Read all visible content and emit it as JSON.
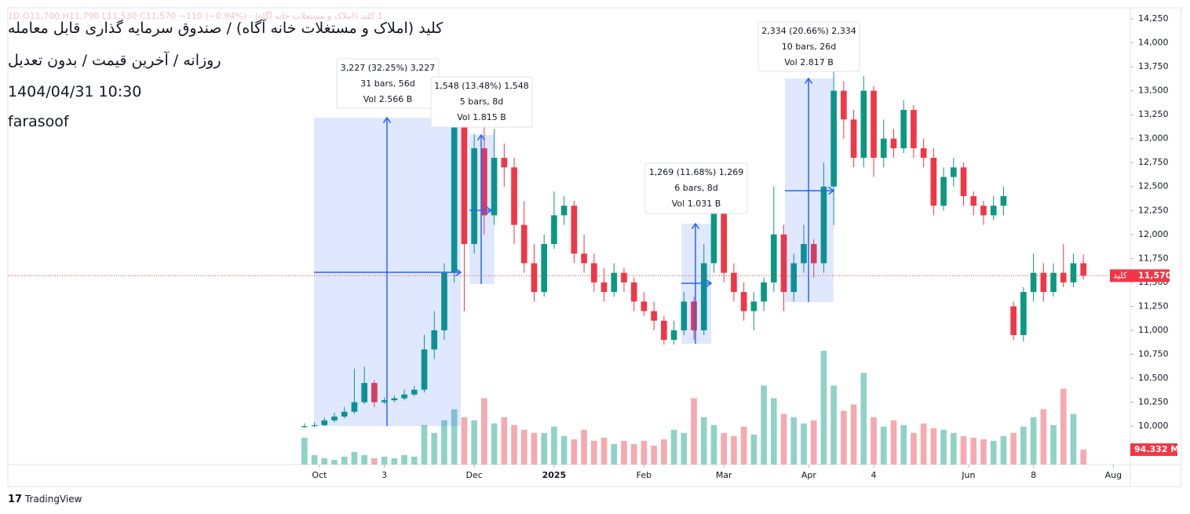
{
  "chart_data": {
    "type": "candlestick",
    "legend_line": "1 کلید (املاک و مستغلات خانه آگاه) · 1D O11,700 H11,790 L11,530 C11,570 −110 (−0.94%)",
    "title": "کلید (املاک و مستغلات خانه آگاه) / صندوق سرمایه گذاری قابل معامله",
    "subtitle": "روزانه / آخرین قیمت / بدون تعدیل",
    "datetime": "1404/04/31 10:30",
    "author": "farasoof",
    "footer": "TradingView",
    "up_color": "#089981",
    "down_color": "#f23645",
    "up_volume_color": "#8fd2c6",
    "down_volume_color": "#f7a9b0",
    "open": [
      9990,
      10000,
      10010,
      10060,
      10100,
      10150,
      10250,
      10450,
      10250,
      10270,
      10290,
      10330,
      10380,
      10800,
      11000,
      11600,
      13200,
      11900,
      12900,
      12200,
      12800,
      12700,
      12100,
      11700,
      11400,
      11900,
      12200,
      12300,
      11800,
      11700,
      11500,
      11400,
      11600,
      11500,
      11300,
      11200,
      11100,
      10900,
      11000,
      11300,
      11000,
      11700,
      12300,
      11600,
      11400,
      11200,
      11300,
      11500,
      12000,
      11400,
      11700,
      11900,
      11700,
      12500,
      13500,
      13200,
      12800,
      13500,
      12800,
      13000,
      12900,
      13300,
      12900,
      12800,
      12300,
      12600,
      12700,
      12400,
      12300,
      12200,
      12300,
      11250,
      10950,
      11400,
      11600,
      11400,
      11600,
      11500,
      11700
    ],
    "high": [
      10030,
      10040,
      10090,
      10140,
      10200,
      10600,
      10620,
      10480,
      10300,
      10320,
      10380,
      10420,
      10950,
      11200,
      11700,
      13300,
      13300,
      13050,
      13200,
      13100,
      12950,
      12800,
      12350,
      11900,
      12000,
      12450,
      12400,
      12350,
      12000,
      11800,
      11650,
      11700,
      11650,
      11550,
      11400,
      11300,
      11150,
      11100,
      11400,
      11350,
      11900,
      12400,
      12350,
      11700,
      11500,
      11400,
      11550,
      12500,
      12100,
      11800,
      12100,
      11950,
      12750,
      13900,
      13600,
      13300,
      13650,
      13550,
      13200,
      13100,
      13400,
      13350,
      13000,
      12900,
      12700,
      12800,
      12750,
      12450,
      12350,
      12400,
      12500,
      11300,
      11450,
      11800,
      11700,
      11700,
      11900,
      11800,
      11790
    ],
    "low": [
      9980,
      9990,
      10000,
      10040,
      10080,
      10130,
      10230,
      10200,
      10230,
      10250,
      10270,
      10310,
      10350,
      10700,
      10900,
      11500,
      11200,
      11800,
      12000,
      12100,
      12500,
      11900,
      11600,
      11300,
      11350,
      11850,
      12100,
      11700,
      11600,
      11400,
      11300,
      11350,
      11400,
      11200,
      11150,
      11000,
      10850,
      10850,
      10950,
      10900,
      10950,
      11600,
      11500,
      11300,
      11100,
      11000,
      11200,
      11400,
      11200,
      11300,
      11600,
      11550,
      11600,
      12100,
      13000,
      12700,
      12700,
      12600,
      12700,
      12800,
      12850,
      12800,
      12700,
      12200,
      12250,
      12500,
      12300,
      12200,
      12100,
      12150,
      12200,
      10900,
      10880,
      11300,
      11300,
      11350,
      11450,
      11450,
      11530
    ],
    "close": [
      10000,
      10010,
      10060,
      10100,
      10150,
      10250,
      10450,
      10250,
      10270,
      10290,
      10330,
      10380,
      10800,
      11000,
      11600,
      13200,
      11900,
      12900,
      12200,
      12800,
      12700,
      12100,
      11700,
      11400,
      11900,
      12200,
      12300,
      11800,
      11700,
      11500,
      11400,
      11600,
      11500,
      11300,
      11200,
      11100,
      10900,
      11000,
      11300,
      11000,
      11700,
      12300,
      11600,
      11400,
      11200,
      11300,
      11500,
      12000,
      11400,
      11700,
      11900,
      11700,
      12500,
      13500,
      13200,
      12800,
      13500,
      12800,
      13000,
      12900,
      13300,
      12900,
      12800,
      12300,
      12600,
      12700,
      12400,
      12300,
      12200,
      12300,
      12400,
      10950,
      11400,
      11600,
      11400,
      11600,
      11500,
      11700,
      11570
    ],
    "volume": [
      170,
      60,
      40,
      30,
      50,
      80,
      60,
      40,
      50,
      40,
      60,
      50,
      250,
      200,
      280,
      350,
      300,
      280,
      420,
      260,
      300,
      250,
      220,
      200,
      200,
      240,
      180,
      160,
      220,
      150,
      170,
      130,
      150,
      130,
      150,
      120,
      160,
      220,
      200,
      420,
      300,
      250,
      200,
      180,
      240,
      190,
      500,
      420,
      320,
      300,
      260,
      280,
      720,
      500,
      340,
      380,
      580,
      300,
      240,
      280,
      250,
      200,
      260,
      230,
      220,
      200,
      180,
      170,
      160,
      150,
      180,
      200,
      240,
      300,
      350,
      250,
      480,
      320,
      94.332
    ],
    "volume_lim": [
      0,
      2890
    ],
    "xlim": [
      -29.7,
      82.7
    ],
    "xticks": [
      {
        "value": 1.5,
        "label": "Oct"
      },
      {
        "value": 8,
        "label": "3"
      },
      {
        "value": 17,
        "label": "Dec"
      },
      {
        "value": 25,
        "label": "2025"
      },
      {
        "value": 34,
        "label": "Feb"
      },
      {
        "value": 42,
        "label": "Mar"
      },
      {
        "value": 50.5,
        "label": "Apr"
      },
      {
        "value": 57,
        "label": "4"
      },
      {
        "value": 66.5,
        "label": "Jun"
      },
      {
        "value": 73,
        "label": "8"
      },
      {
        "value": 81,
        "label": "Aug"
      }
    ],
    "ylim": [
      9599,
      14365
    ],
    "yticks": [
      {
        "value": 10000,
        "label": "10,000"
      },
      {
        "value": 10250,
        "label": "10,250"
      },
      {
        "value": 10500,
        "label": "10,500"
      },
      {
        "value": 10750,
        "label": "10,750"
      },
      {
        "value": 11000,
        "label": "11,000"
      },
      {
        "value": 11250,
        "label": "11,250"
      },
      {
        "value": 11500,
        "label": "11,500"
      },
      {
        "value": 11750,
        "label": "11,750"
      },
      {
        "value": 12000,
        "label": "12,000"
      },
      {
        "value": 12250,
        "label": "12,250"
      },
      {
        "value": 12500,
        "label": "12,500"
      },
      {
        "value": 12750,
        "label": "12,750"
      },
      {
        "value": 13000,
        "label": "13,000"
      },
      {
        "value": 13250,
        "label": "13,250"
      },
      {
        "value": 13500,
        "label": "13,500"
      },
      {
        "value": 13750,
        "label": "13,750"
      },
      {
        "value": 14000,
        "label": "14,000"
      },
      {
        "value": 14250,
        "label": "14,250"
      }
    ],
    "last_price": {
      "value": 11570,
      "label": "11,570",
      "name": "کلید"
    },
    "last_volume": {
      "value": 94.332,
      "label": "94.332 M"
    },
    "measurements": [
      {
        "lines": [
          "3,227 (32.25%) 3,227",
          "31 bars, 56d",
          "Vol 2.566 B"
        ]
      },
      {
        "lines": [
          "1,548 (13.48%) 1,548",
          "5 bars, 8d",
          "Vol 1.815 B"
        ]
      },
      {
        "lines": [
          "1,269 (11.68%) 1,269",
          "6 bars, 8d",
          "Vol 1.031 B"
        ]
      },
      {
        "lines": [
          "2,334 (20.66%) 2,334",
          "10 bars, 26d",
          "Vol 2.817 B"
        ]
      }
    ],
    "grid": false
  }
}
